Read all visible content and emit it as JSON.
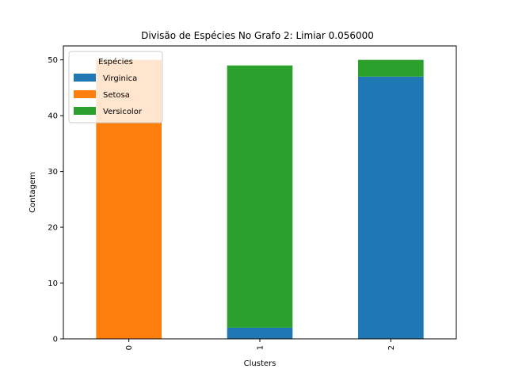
{
  "chart_data": {
    "type": "bar",
    "stacked": true,
    "title": "Divisão de Espécies No Grafo 2: Limiar 0.056000",
    "xlabel": "Clusters",
    "ylabel": "Contagem",
    "categories": [
      "0",
      "1",
      "2"
    ],
    "x_tick_rotation": 90,
    "ylim": [
      0,
      52.5
    ],
    "yticks": [
      "0",
      "10",
      "20",
      "30",
      "40",
      "50"
    ],
    "legend": {
      "title": "Espécies",
      "placement": "upper left"
    },
    "series": [
      {
        "name": "Virginica",
        "color": "#1f77b4",
        "values": [
          0,
          2,
          47
        ]
      },
      {
        "name": "Setosa",
        "color": "#ff7f0e",
        "values": [
          50,
          0,
          0
        ]
      },
      {
        "name": "Versicolor",
        "color": "#2ca02c",
        "values": [
          0,
          47,
          3
        ]
      }
    ],
    "grid": false
  }
}
